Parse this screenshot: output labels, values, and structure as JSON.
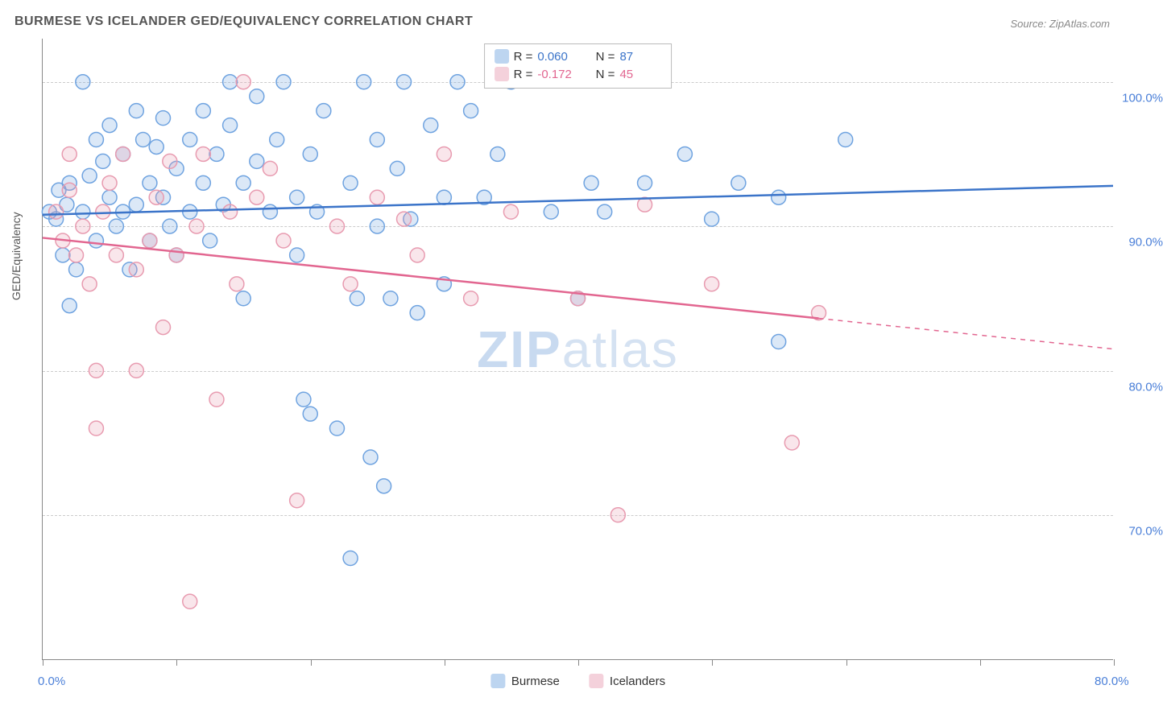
{
  "title": "BURMESE VS ICELANDER GED/EQUIVALENCY CORRELATION CHART",
  "source": "Source: ZipAtlas.com",
  "watermark_zip": "ZIP",
  "watermark_atlas": "atlas",
  "yaxis_title": "GED/Equivalency",
  "chart": {
    "type": "scatter",
    "xlim": [
      0,
      80
    ],
    "ylim": [
      60,
      103
    ],
    "x_ticks": [
      0,
      10,
      20,
      30,
      40,
      50,
      60,
      70,
      80
    ],
    "x_tick_labels": {
      "0": "0.0%",
      "80": "80.0%"
    },
    "y_ticks": [
      70,
      80,
      90,
      100
    ],
    "y_tick_labels": {
      "70": "70.0%",
      "80": "80.0%",
      "90": "90.0%",
      "100": "100.0%"
    },
    "background_color": "#ffffff",
    "grid_color": "#cccccc",
    "axis_color": "#888888",
    "text_color": "#555555",
    "tick_label_color": "#4a7fd8",
    "marker_radius": 9,
    "marker_stroke_width": 1.5,
    "marker_fill_opacity": 0.25,
    "trend_line_width": 2.5,
    "series": [
      {
        "name": "Burmese",
        "color": "#6fa3e0",
        "line_color": "#3b74c9",
        "R": "0.060",
        "N": "87",
        "trend": {
          "x1": 0,
          "y1": 90.8,
          "x2": 80,
          "y2": 92.8,
          "extrapolate_from_x": null
        },
        "points": [
          [
            0.5,
            91
          ],
          [
            1,
            90.5
          ],
          [
            1.2,
            92.5
          ],
          [
            1.5,
            88
          ],
          [
            1.8,
            91.5
          ],
          [
            2,
            93
          ],
          [
            2,
            84.5
          ],
          [
            2.5,
            87
          ],
          [
            3,
            91
          ],
          [
            3,
            100
          ],
          [
            3.5,
            93.5
          ],
          [
            4,
            96
          ],
          [
            4,
            89
          ],
          [
            4.5,
            94.5
          ],
          [
            5,
            92
          ],
          [
            5,
            97
          ],
          [
            5.5,
            90
          ],
          [
            6,
            91
          ],
          [
            6,
            95
          ],
          [
            6.5,
            87
          ],
          [
            7,
            98
          ],
          [
            7,
            91.5
          ],
          [
            7.5,
            96
          ],
          [
            8,
            93
          ],
          [
            8,
            89
          ],
          [
            8.5,
            95.5
          ],
          [
            9,
            92
          ],
          [
            9,
            97.5
          ],
          [
            9.5,
            90
          ],
          [
            10,
            94
          ],
          [
            10,
            88
          ],
          [
            11,
            96
          ],
          [
            11,
            91
          ],
          [
            12,
            93
          ],
          [
            12,
            98
          ],
          [
            12.5,
            89
          ],
          [
            13,
            95
          ],
          [
            13.5,
            91.5
          ],
          [
            14,
            97
          ],
          [
            14,
            100
          ],
          [
            15,
            93
          ],
          [
            15,
            85
          ],
          [
            16,
            94.5
          ],
          [
            16,
            99
          ],
          [
            17,
            91
          ],
          [
            17.5,
            96
          ],
          [
            18,
            100
          ],
          [
            19,
            92
          ],
          [
            19,
            88
          ],
          [
            19.5,
            78
          ],
          [
            20,
            95
          ],
          [
            20,
            77
          ],
          [
            20.5,
            91
          ],
          [
            21,
            98
          ],
          [
            22,
            76
          ],
          [
            23,
            67
          ],
          [
            23,
            93
          ],
          [
            23.5,
            85
          ],
          [
            24,
            100
          ],
          [
            24.5,
            74
          ],
          [
            25,
            96
          ],
          [
            25,
            90
          ],
          [
            25.5,
            72
          ],
          [
            26,
            85
          ],
          [
            26.5,
            94
          ],
          [
            27,
            100
          ],
          [
            27.5,
            90.5
          ],
          [
            28,
            84
          ],
          [
            29,
            97
          ],
          [
            30,
            92
          ],
          [
            30,
            86
          ],
          [
            31,
            100
          ],
          [
            32,
            98
          ],
          [
            33,
            92
          ],
          [
            34,
            95
          ],
          [
            35,
            100
          ],
          [
            38,
            91
          ],
          [
            40,
            85
          ],
          [
            41,
            93
          ],
          [
            42,
            91
          ],
          [
            45,
            93
          ],
          [
            48,
            95
          ],
          [
            50,
            90.5
          ],
          [
            52,
            93
          ],
          [
            55,
            92
          ],
          [
            55,
            82
          ],
          [
            60,
            96
          ]
        ]
      },
      {
        "name": "Icelanders",
        "color": "#e89bb0",
        "line_color": "#e26690",
        "R": "-0.172",
        "N": "45",
        "trend": {
          "x1": 0,
          "y1": 89.2,
          "x2": 80,
          "y2": 81.5,
          "extrapolate_from_x": 58
        },
        "points": [
          [
            1,
            91
          ],
          [
            1.5,
            89
          ],
          [
            2,
            92.5
          ],
          [
            2,
            95
          ],
          [
            2.5,
            88
          ],
          [
            3,
            90
          ],
          [
            3.5,
            86
          ],
          [
            4,
            80
          ],
          [
            4,
            76
          ],
          [
            4.5,
            91
          ],
          [
            5,
            93
          ],
          [
            5.5,
            88
          ],
          [
            6,
            95
          ],
          [
            7,
            80
          ],
          [
            7,
            87
          ],
          [
            8,
            89
          ],
          [
            8.5,
            92
          ],
          [
            9,
            83
          ],
          [
            9.5,
            94.5
          ],
          [
            10,
            88
          ],
          [
            11,
            64
          ],
          [
            11.5,
            90
          ],
          [
            12,
            95
          ],
          [
            13,
            78
          ],
          [
            14,
            91
          ],
          [
            14.5,
            86
          ],
          [
            15,
            100
          ],
          [
            16,
            92
          ],
          [
            17,
            94
          ],
          [
            18,
            89
          ],
          [
            19,
            71
          ],
          [
            22,
            90
          ],
          [
            23,
            86
          ],
          [
            25,
            92
          ],
          [
            27,
            90.5
          ],
          [
            28,
            88
          ],
          [
            30,
            95
          ],
          [
            32,
            85
          ],
          [
            35,
            91
          ],
          [
            40,
            85
          ],
          [
            43,
            70
          ],
          [
            45,
            91.5
          ],
          [
            50,
            86
          ],
          [
            56,
            75
          ],
          [
            58,
            84
          ]
        ]
      }
    ]
  },
  "legend_labels": {
    "R": "R =",
    "N": "N ="
  },
  "bottom_legend": [
    "Burmese",
    "Icelanders"
  ]
}
